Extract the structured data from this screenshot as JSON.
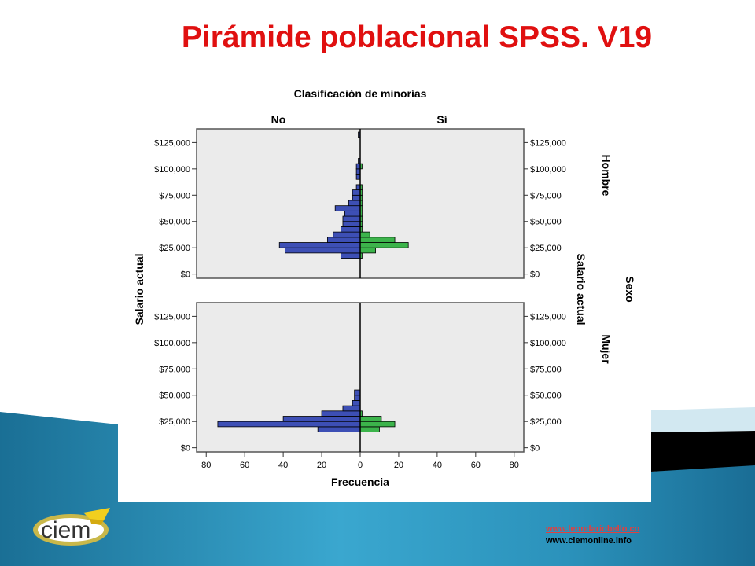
{
  "slide": {
    "title": "Pirámide poblacional SPSS. V19",
    "links": [
      "www.leondariobello.co",
      "www.ciemonline.info"
    ],
    "logo_text": "ciem"
  },
  "chart_data": {
    "type": "bar",
    "orientation": "horizontal-pyramid",
    "title": "Clasificación de minorías",
    "column_labels": [
      "No",
      "Sí"
    ],
    "row_panel_title": "Sexo",
    "row_labels": [
      "Hombre",
      "Mujer"
    ],
    "ylabel_left": "Salario actual",
    "ylabel_right": "Salario actual",
    "xlabel": "Frecuencia",
    "x_ticks": [
      80,
      60,
      40,
      20,
      0,
      20,
      40,
      60,
      80
    ],
    "x_max": 85,
    "y_ticks": [
      "$0",
      "$25,000",
      "$50,000",
      "$75,000",
      "$100,000",
      "$125,000"
    ],
    "y_tick_values": [
      0,
      25000,
      50000,
      75000,
      100000,
      125000
    ],
    "ylim": [
      -4000,
      138000
    ],
    "bin_width": 5000,
    "colors": {
      "No": "#3d4fb5",
      "Si": "#3cb44b",
      "frame": "#555555",
      "plot_bg": "#ebebeb"
    },
    "panels": [
      {
        "sexo": "Hombre",
        "no": [
          {
            "bin": 15000,
            "count": 10
          },
          {
            "bin": 20000,
            "count": 39
          },
          {
            "bin": 25000,
            "count": 42
          },
          {
            "bin": 30000,
            "count": 17
          },
          {
            "bin": 35000,
            "count": 14
          },
          {
            "bin": 40000,
            "count": 10
          },
          {
            "bin": 45000,
            "count": 9
          },
          {
            "bin": 50000,
            "count": 9
          },
          {
            "bin": 55000,
            "count": 8
          },
          {
            "bin": 60000,
            "count": 13
          },
          {
            "bin": 65000,
            "count": 6
          },
          {
            "bin": 70000,
            "count": 4
          },
          {
            "bin": 75000,
            "count": 4
          },
          {
            "bin": 80000,
            "count": 2
          },
          {
            "bin": 90000,
            "count": 2
          },
          {
            "bin": 95000,
            "count": 2
          },
          {
            "bin": 100000,
            "count": 2
          },
          {
            "bin": 105000,
            "count": 1
          },
          {
            "bin": 130000,
            "count": 1
          }
        ],
        "si": [
          {
            "bin": 15000,
            "count": 1
          },
          {
            "bin": 20000,
            "count": 8
          },
          {
            "bin": 25000,
            "count": 25
          },
          {
            "bin": 30000,
            "count": 18
          },
          {
            "bin": 35000,
            "count": 5
          },
          {
            "bin": 40000,
            "count": 1
          },
          {
            "bin": 45000,
            "count": 1
          },
          {
            "bin": 50000,
            "count": 1
          },
          {
            "bin": 55000,
            "count": 1
          },
          {
            "bin": 60000,
            "count": 1
          },
          {
            "bin": 65000,
            "count": 1
          },
          {
            "bin": 70000,
            "count": 1
          },
          {
            "bin": 75000,
            "count": 1
          },
          {
            "bin": 80000,
            "count": 1
          },
          {
            "bin": 100000,
            "count": 1
          }
        ]
      },
      {
        "sexo": "Mujer",
        "no": [
          {
            "bin": 15000,
            "count": 22
          },
          {
            "bin": 20000,
            "count": 74
          },
          {
            "bin": 25000,
            "count": 40
          },
          {
            "bin": 30000,
            "count": 20
          },
          {
            "bin": 35000,
            "count": 9
          },
          {
            "bin": 40000,
            "count": 4
          },
          {
            "bin": 45000,
            "count": 3
          },
          {
            "bin": 50000,
            "count": 3
          }
        ],
        "si": [
          {
            "bin": 15000,
            "count": 10
          },
          {
            "bin": 20000,
            "count": 18
          },
          {
            "bin": 25000,
            "count": 11
          },
          {
            "bin": 30000,
            "count": 1
          }
        ]
      }
    ]
  }
}
